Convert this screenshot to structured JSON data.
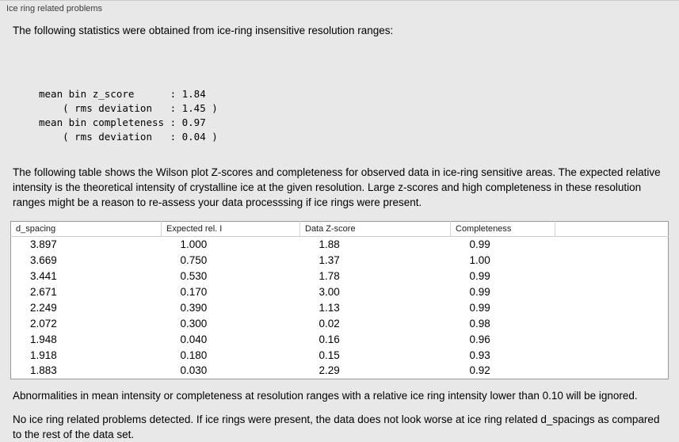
{
  "panel": {
    "title": "Ice ring related problems"
  },
  "stats": {
    "intro": "The following statistics were obtained from ice-ring insensitive resolution ranges:",
    "lines": [
      "mean bin z_score      : 1.84",
      "    ( rms deviation   : 1.45 )",
      "mean bin completeness : 0.97",
      "    ( rms deviation   : 0.04 )"
    ]
  },
  "description": "The following table shows the Wilson plot Z-scores and completeness for observed data in ice-ring sensitive areas. The expected relative intensity is the theoretical intensity of crystalline ice at the given resolution. Large z-scores and high completeness in these resolution ranges might be a reason to re-assess your data processsing if ice rings were present.",
  "table": {
    "headers": [
      "d_spacing",
      "Expected rel. I",
      "Data Z-score",
      "Completeness"
    ],
    "rows": [
      [
        "3.897",
        "1.000",
        "1.88",
        "0.99"
      ],
      [
        "3.669",
        "0.750",
        "1.37",
        "1.00"
      ],
      [
        "3.441",
        "0.530",
        "1.78",
        "0.99"
      ],
      [
        "2.671",
        "0.170",
        "3.00",
        "0.99"
      ],
      [
        "2.249",
        "0.390",
        "1.13",
        "0.99"
      ],
      [
        "2.072",
        "0.300",
        "0.02",
        "0.98"
      ],
      [
        "1.948",
        "0.040",
        "0.16",
        "0.96"
      ],
      [
        "1.918",
        "0.180",
        "0.15",
        "0.93"
      ],
      [
        "1.883",
        "0.030",
        "2.29",
        "0.92"
      ]
    ]
  },
  "notes": {
    "ignore_rule": "Abnormalities in mean intensity or completeness at resolution ranges with a relative ice ring intensity lower than 0.10 will be ignored.",
    "conclusion": "No ice ring related problems detected. If ice rings were present, the data does not look worse at ice ring related d_spacings as compared to the rest of the data set."
  },
  "colors": {
    "background": "#e8e8e8",
    "table_background": "#ffffff",
    "table_border": "#989898"
  }
}
